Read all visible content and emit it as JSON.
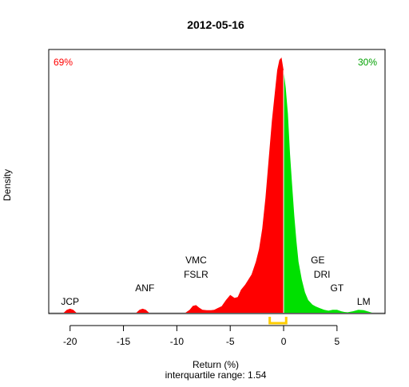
{
  "chart_data": {
    "type": "area",
    "title": "2012-05-16",
    "xlabel": "Return (%)",
    "subtitle": "interquartile range: 1.54",
    "ylabel": "Density",
    "xlim": [
      -22,
      9.5
    ],
    "ylim": [
      0,
      1
    ],
    "x_ticks": [
      -20,
      -15,
      -10,
      -5,
      0,
      5
    ],
    "pct_negative": "69%",
    "pct_positive": "30%",
    "colors": {
      "negative": "#ff0000",
      "positive": "#00e000",
      "iqr": "#ffcc00",
      "baseline": "#bebebe"
    },
    "iqr": [
      -1.3,
      0.24
    ],
    "density": {
      "x": [
        -20.6,
        -20.3,
        -20.0,
        -19.7,
        -19.4,
        -13.8,
        -13.5,
        -13.2,
        -12.9,
        -12.6,
        -9.2,
        -8.8,
        -8.5,
        -8.2,
        -7.9,
        -7.6,
        -7.2,
        -6.8,
        -6.5,
        -6.2,
        -5.8,
        -5.4,
        -5.0,
        -4.6,
        -4.3,
        -4.0,
        -3.6,
        -3.3,
        -3.0,
        -2.6,
        -2.3,
        -2.0,
        -1.7,
        -1.4,
        -1.1,
        -0.8,
        -0.6,
        -0.4,
        -0.2,
        0.0,
        0.2,
        0.4,
        0.6,
        0.8,
        1.0,
        1.2,
        1.4,
        1.7,
        2.0,
        2.3,
        2.7,
        3.0,
        3.4,
        3.8,
        4.2,
        4.6,
        5.0,
        5.4,
        5.7,
        6.0,
        6.5,
        7.0,
        7.5,
        8.0,
        8.3
      ],
      "y": [
        0,
        0.012,
        0.016,
        0.012,
        0,
        0,
        0.012,
        0.016,
        0.012,
        0,
        0,
        0.012,
        0.027,
        0.03,
        0.02,
        0.012,
        0.01,
        0.01,
        0.012,
        0.018,
        0.026,
        0.05,
        0.07,
        0.058,
        0.062,
        0.09,
        0.11,
        0.13,
        0.15,
        0.2,
        0.25,
        0.33,
        0.45,
        0.6,
        0.75,
        0.87,
        0.95,
        0.99,
        1.0,
        0.95,
        0.88,
        0.78,
        0.62,
        0.5,
        0.38,
        0.28,
        0.2,
        0.13,
        0.08,
        0.05,
        0.032,
        0.025,
        0.018,
        0.012,
        0.008,
        0.012,
        0.012,
        0.006,
        0.003,
        0.002,
        0.006,
        0.012,
        0.01,
        0.004,
        0
      ]
    },
    "stock_labels": [
      {
        "name": "JCP",
        "x": -20.0,
        "row": 4
      },
      {
        "name": "ANF",
        "x": -13.0,
        "row": 3
      },
      {
        "name": "FSLR",
        "x": -8.2,
        "row": 2
      },
      {
        "name": "VMC",
        "x": -8.2,
        "row": 1
      },
      {
        "name": "GE",
        "x": 3.2,
        "row": 1
      },
      {
        "name": "DRI",
        "x": 3.6,
        "row": 2
      },
      {
        "name": "GT",
        "x": 5.0,
        "row": 3
      },
      {
        "name": "LM",
        "x": 7.5,
        "row": 4
      }
    ]
  }
}
